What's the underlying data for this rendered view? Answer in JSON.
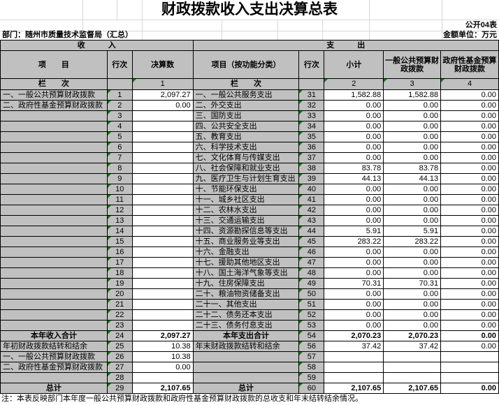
{
  "title": "财政拨款收入支出决算总表",
  "meta": {
    "table_code": "公开04表",
    "department": "部门：随州市质量技术监督局（汇总）",
    "unit": "金额单位：万元"
  },
  "sections": {
    "income": "收　　　入",
    "expense": "支　　　出"
  },
  "columns": {
    "item": "项　　目",
    "line_no": "行次",
    "final_amount": "决算数",
    "item_by_function": "项目（按功能分类）",
    "line_no2": "行次",
    "subtotal": "小计",
    "general_budget": "一般公共预算财政拨款",
    "gov_fund_budget": "政府性基金预算财政拨款",
    "column_index_label": "栏　　次",
    "column_indexes": [
      "1",
      "2",
      "3",
      "4"
    ]
  },
  "income_rows": [
    {
      "label": "一、一般公共预算财政拨款",
      "line": "1",
      "value": "2,097.27"
    },
    {
      "label": "二、政府性基金预算财政拨款",
      "line": "2",
      "value": "0.00"
    },
    {
      "label": "",
      "line": "3",
      "value": ""
    },
    {
      "label": "",
      "line": "4",
      "value": ""
    },
    {
      "label": "",
      "line": "5",
      "value": ""
    },
    {
      "label": "",
      "line": "6",
      "value": ""
    },
    {
      "label": "",
      "line": "7",
      "value": ""
    },
    {
      "label": "",
      "line": "8",
      "value": ""
    },
    {
      "label": "",
      "line": "9",
      "value": ""
    },
    {
      "label": "",
      "line": "10",
      "value": ""
    },
    {
      "label": "",
      "line": "11",
      "value": ""
    },
    {
      "label": "",
      "line": "12",
      "value": ""
    },
    {
      "label": "",
      "line": "13",
      "value": ""
    },
    {
      "label": "",
      "line": "14",
      "value": ""
    },
    {
      "label": "",
      "line": "15",
      "value": ""
    },
    {
      "label": "",
      "line": "16",
      "value": ""
    },
    {
      "label": "",
      "line": "17",
      "value": ""
    },
    {
      "label": "",
      "line": "18",
      "value": ""
    },
    {
      "label": "",
      "line": "19",
      "value": ""
    },
    {
      "label": "",
      "line": "20",
      "value": ""
    },
    {
      "label": "",
      "line": "21",
      "value": ""
    },
    {
      "label": "",
      "line": "22",
      "value": ""
    },
    {
      "label": "",
      "line": "23",
      "value": ""
    },
    {
      "label": "本年收入合计",
      "line": "24",
      "value": "2,097.27",
      "bold": true
    },
    {
      "label": "年初财政拨款结转和结余",
      "line": "25",
      "value": "10.38"
    },
    {
      "label": "一、一般公共预算财政拨款",
      "line": "26",
      "value": "10.38"
    },
    {
      "label": "二、政府性基金预算财政拨款",
      "line": "27",
      "value": "0.00"
    },
    {
      "label": "",
      "line": "28",
      "value": ""
    },
    {
      "label": "总计",
      "line": "29",
      "value": "2,107.65",
      "bold": true
    }
  ],
  "expense_rows": [
    {
      "label": "一、一般公共服务支出",
      "line": "31",
      "subtotal": "1,582.88",
      "general": "1,582.88",
      "fund": "0.00"
    },
    {
      "label": "二、外交支出",
      "line": "32",
      "subtotal": "0.00",
      "general": "0.00",
      "fund": "0.00"
    },
    {
      "label": "三、国防支出",
      "line": "33",
      "subtotal": "0.00",
      "general": "0.00",
      "fund": "0.00"
    },
    {
      "label": "四、公共安全支出",
      "line": "34",
      "subtotal": "0.00",
      "general": "0.00",
      "fund": "0.00"
    },
    {
      "label": "五、教育支出",
      "line": "35",
      "subtotal": "0.00",
      "general": "0.00",
      "fund": "0.00"
    },
    {
      "label": "六、科学技术支出",
      "line": "36",
      "subtotal": "0.00",
      "general": "0.00",
      "fund": "0.00"
    },
    {
      "label": "七、文化体育与传媒支出",
      "line": "37",
      "subtotal": "0.00",
      "general": "0.00",
      "fund": "0.00"
    },
    {
      "label": "八、社会保障和就业支出",
      "line": "38",
      "subtotal": "83.78",
      "general": "83.78",
      "fund": "0.00"
    },
    {
      "label": "九、医疗卫生与计划生育支出",
      "line": "39",
      "subtotal": "44.13",
      "general": "44.13",
      "fund": "0.00"
    },
    {
      "label": "十、节能环保支出",
      "line": "40",
      "subtotal": "0.00",
      "general": "0.00",
      "fund": "0.00"
    },
    {
      "label": "十一、城乡社区支出",
      "line": "41",
      "subtotal": "0.00",
      "general": "0.00",
      "fund": "0.00"
    },
    {
      "label": "十二、农林水支出",
      "line": "42",
      "subtotal": "0.00",
      "general": "0.00",
      "fund": "0.00"
    },
    {
      "label": "十三、交通运输支出",
      "line": "43",
      "subtotal": "0.00",
      "general": "0.00",
      "fund": "0.00"
    },
    {
      "label": "十四、资源勘探信息等支出",
      "line": "44",
      "subtotal": "5.91",
      "general": "5.91",
      "fund": "0.00"
    },
    {
      "label": "十五、商业服务业等支出",
      "line": "45",
      "subtotal": "283.22",
      "general": "283.22",
      "fund": "0.00"
    },
    {
      "label": "十六、金融支出",
      "line": "46",
      "subtotal": "0.00",
      "general": "0.00",
      "fund": "0.00"
    },
    {
      "label": "十七、援助其他地区支出",
      "line": "47",
      "subtotal": "0.00",
      "general": "0.00",
      "fund": "0.00"
    },
    {
      "label": "十八、国土海洋气象等支出",
      "line": "48",
      "subtotal": "0.00",
      "general": "0.00",
      "fund": "0.00"
    },
    {
      "label": "十九、住房保障支出",
      "line": "49",
      "subtotal": "70.31",
      "general": "70.31",
      "fund": "0.00"
    },
    {
      "label": "二十、粮油物资储备支出",
      "line": "50",
      "subtotal": "0.00",
      "general": "0.00",
      "fund": "0.00"
    },
    {
      "label": "二十一、其他支出",
      "line": "51",
      "subtotal": "0.00",
      "general": "0.00",
      "fund": "0.00"
    },
    {
      "label": "二十二、债务还本支出",
      "line": "52",
      "subtotal": "0.00",
      "general": "0.00",
      "fund": "0.00"
    },
    {
      "label": "二十三、债务付息支出",
      "line": "53",
      "subtotal": "0.00",
      "general": "0.00",
      "fund": "0.00"
    },
    {
      "label": "本年支出合计",
      "line": "54",
      "subtotal": "2,070.23",
      "general": "2,070.23",
      "fund": "0.00",
      "bold": true
    },
    {
      "label": "年末财政拨款结转和结余",
      "line": "56",
      "subtotal": "37.42",
      "general": "37.42",
      "fund": "0.00"
    },
    {
      "label": "",
      "line": "57",
      "subtotal": "",
      "general": "",
      "fund": ""
    },
    {
      "label": "",
      "line": "58",
      "subtotal": "",
      "general": "",
      "fund": ""
    },
    {
      "label": "",
      "line": "59",
      "subtotal": "",
      "general": "",
      "fund": ""
    },
    {
      "label": "总计",
      "line": "60",
      "subtotal": "2,107.65",
      "general": "2,107.65",
      "fund": "0.00",
      "bold": true
    }
  ],
  "note": "注：本表反映部门本年度一般公共预算财政拨款和政府性基金预算财政拨款的总收支和年末结转结余情况。",
  "colors": {
    "header_fill": "#c0c0c0",
    "error_flag_green": "#008000",
    "gridline_light": "#d6d6d6",
    "border_black": "#000000"
  }
}
